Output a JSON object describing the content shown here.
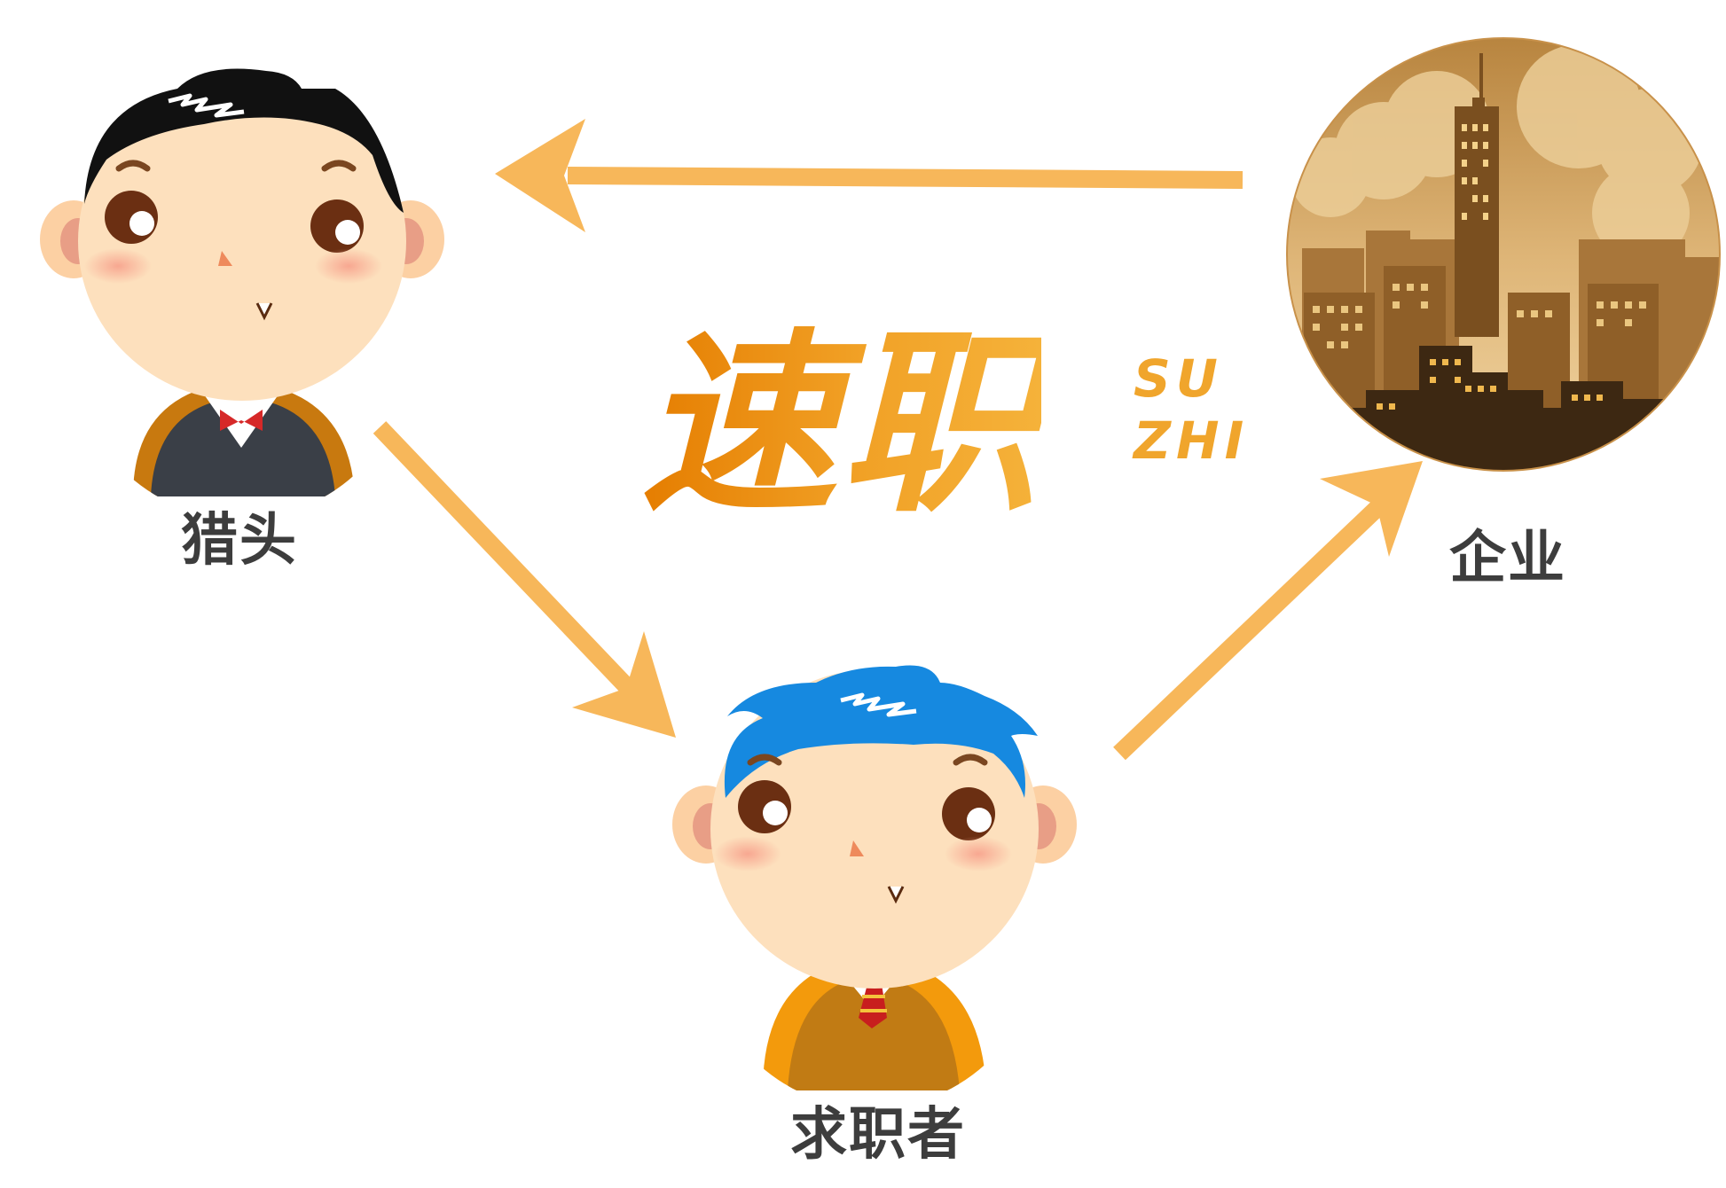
{
  "nodes": {
    "headhunter": {
      "label": "猎头"
    },
    "jobseeker": {
      "label": "求职者"
    },
    "enterprise": {
      "label": "企业"
    }
  },
  "logo": {
    "chinese": "速职",
    "english_line1": "SU",
    "english_line2": "ZHI"
  },
  "colors": {
    "arrow": "#f7b75a",
    "logo_orange": "#e8870a",
    "label_text": "#3d3d3d",
    "jobseeker_hair": "#1689e0",
    "headhunter_hair": "#111111",
    "skin": "#fde0bd",
    "city_sepia": "#c8914a"
  }
}
